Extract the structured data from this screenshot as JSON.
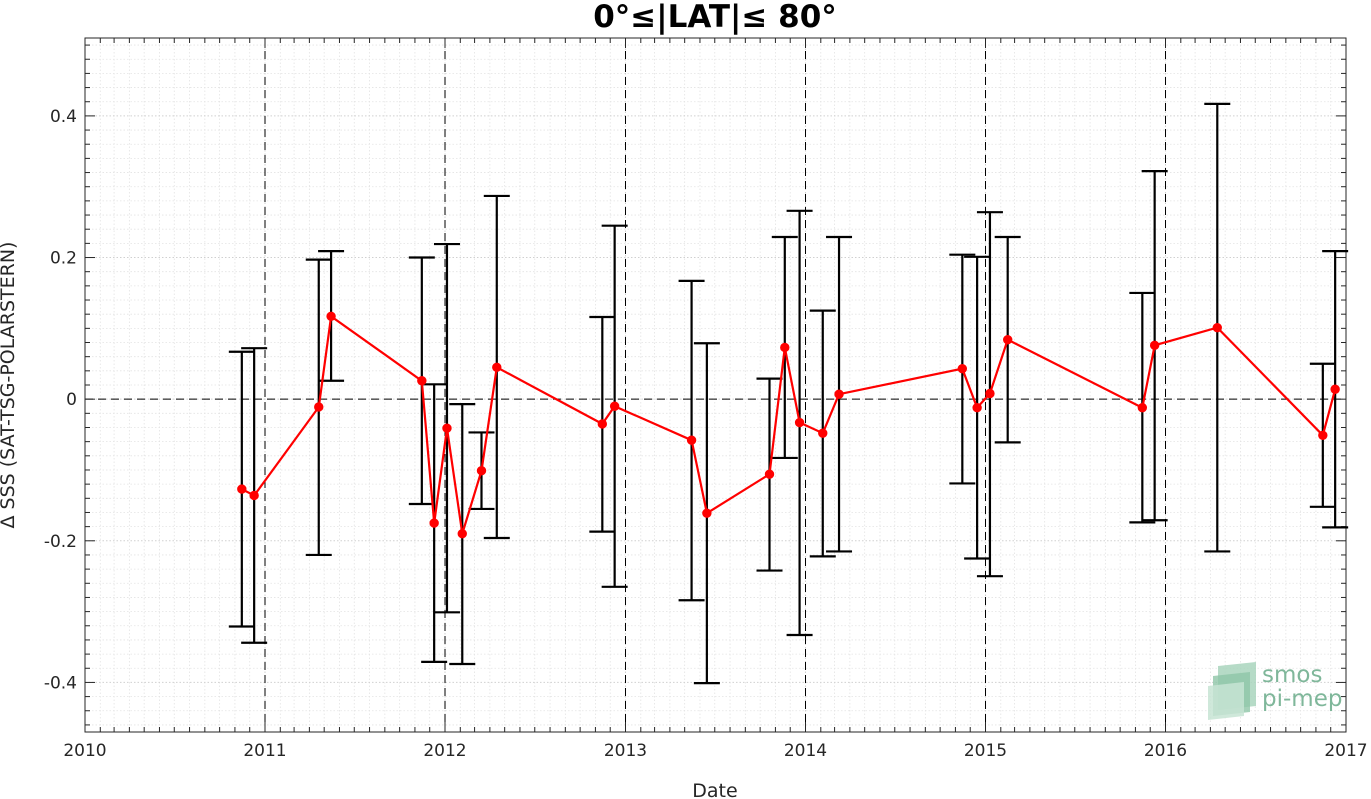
{
  "chart_data": {
    "type": "scatter",
    "title": "0°≤|LAT|≤ 80°",
    "xlabel": "Date",
    "ylabel": "Δ SSS (SAT-TSG-POLARSTERN)",
    "xlim": [
      "2010-01-01",
      "2017-01-01"
    ],
    "ylim": [
      -0.47,
      0.51
    ],
    "x_ticks": [
      "2010",
      "2011",
      "2012",
      "2013",
      "2014",
      "2015",
      "2016",
      "2017"
    ],
    "y_ticks": [
      -0.4,
      -0.2,
      0,
      0.2,
      0.4
    ],
    "y_tick_labels": [
      "-0.4",
      "-0.2",
      "0",
      "0.2",
      "0.4"
    ],
    "grid": true,
    "minor_grid": true,
    "reference_line_y": 0,
    "series": [
      {
        "color": "#ff0000",
        "marker": "circle",
        "line": true,
        "error_bar_color": "#000000",
        "points": [
          {
            "x": "2010-11-15",
            "y": -0.127,
            "lo": -0.321,
            "hi": 0.067
          },
          {
            "x": "2010-12-10",
            "y": -0.136,
            "lo": -0.344,
            "hi": 0.072
          },
          {
            "x": "2011-04-20",
            "y": -0.011,
            "lo": -0.22,
            "hi": 0.197
          },
          {
            "x": "2011-05-15",
            "y": 0.117,
            "lo": 0.026,
            "hi": 0.209
          },
          {
            "x": "2011-11-15",
            "y": 0.026,
            "lo": -0.148,
            "hi": 0.2
          },
          {
            "x": "2011-12-10",
            "y": -0.175,
            "lo": -0.371,
            "hi": 0.021
          },
          {
            "x": "2012-01-05",
            "y": -0.041,
            "lo": -0.301,
            "hi": 0.219
          },
          {
            "x": "2012-02-05",
            "y": -0.19,
            "lo": -0.374,
            "hi": -0.007
          },
          {
            "x": "2012-03-15",
            "y": -0.101,
            "lo": -0.155,
            "hi": -0.047
          },
          {
            "x": "2012-04-15",
            "y": 0.045,
            "lo": -0.196,
            "hi": 0.287
          },
          {
            "x": "2012-11-15",
            "y": -0.035,
            "lo": -0.187,
            "hi": 0.116
          },
          {
            "x": "2012-12-10",
            "y": -0.01,
            "lo": -0.265,
            "hi": 0.245
          },
          {
            "x": "2013-05-15",
            "y": -0.058,
            "lo": -0.284,
            "hi": 0.167
          },
          {
            "x": "2013-06-15",
            "y": -0.161,
            "lo": -0.401,
            "hi": 0.079
          },
          {
            "x": "2013-10-20",
            "y": -0.106,
            "lo": -0.242,
            "hi": 0.029
          },
          {
            "x": "2013-11-20",
            "y": 0.073,
            "lo": -0.083,
            "hi": 0.229
          },
          {
            "x": "2013-12-20",
            "y": -0.033,
            "lo": -0.333,
            "hi": 0.266
          },
          {
            "x": "2014-02-05",
            "y": -0.048,
            "lo": -0.222,
            "hi": 0.125
          },
          {
            "x": "2014-03-10",
            "y": 0.007,
            "lo": -0.215,
            "hi": 0.229
          },
          {
            "x": "2014-11-15",
            "y": 0.043,
            "lo": -0.119,
            "hi": 0.204
          },
          {
            "x": "2014-12-15",
            "y": -0.012,
            "lo": -0.225,
            "hi": 0.201
          },
          {
            "x": "2015-01-10",
            "y": 0.008,
            "lo": -0.25,
            "hi": 0.264
          },
          {
            "x": "2015-02-15",
            "y": 0.084,
            "lo": -0.061,
            "hi": 0.229
          },
          {
            "x": "2015-11-15",
            "y": -0.012,
            "lo": -0.174,
            "hi": 0.15
          },
          {
            "x": "2015-12-10",
            "y": 0.076,
            "lo": -0.171,
            "hi": 0.322
          },
          {
            "x": "2016-04-15",
            "y": 0.101,
            "lo": -0.215,
            "hi": 0.417
          },
          {
            "x": "2016-11-15",
            "y": -0.051,
            "lo": -0.152,
            "hi": 0.05
          },
          {
            "x": "2016-12-10",
            "y": 0.014,
            "lo": -0.181,
            "hi": 0.209
          }
        ]
      }
    ]
  },
  "logo": {
    "line1": "smos",
    "line2": "pi-mep",
    "color": "#7fb79a"
  }
}
